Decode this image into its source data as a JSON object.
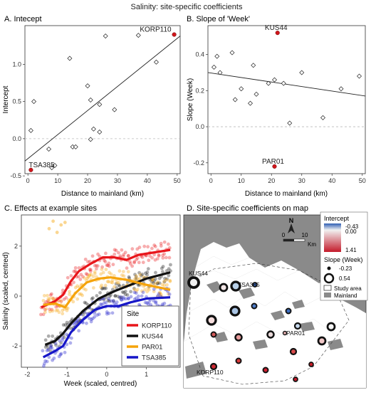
{
  "figure_title": "Salinity: site-specific coefficients",
  "chart_data": [
    {
      "panel": "A",
      "type": "scatter",
      "title": "A. Intecept",
      "xlabel": "Distance to mainland (km)",
      "ylabel": "Intercept",
      "xlim": [
        -1,
        51
      ],
      "ylim": [
        -0.47,
        1.52
      ],
      "xticks": [
        0,
        10,
        20,
        30,
        40,
        50
      ],
      "yticks": [
        -0.5,
        0.0,
        0.5,
        1.0
      ],
      "ytick_labels": [
        "-0.5",
        "0.0",
        "0.5",
        "1.0"
      ],
      "grid": false,
      "points": [
        {
          "x": 1,
          "y": 0.11
        },
        {
          "x": 2,
          "y": 0.5
        },
        {
          "x": 7,
          "y": -0.14
        },
        {
          "x": 8,
          "y": -0.39
        },
        {
          "x": 9,
          "y": -0.36
        },
        {
          "x": 14,
          "y": 1.08
        },
        {
          "x": 15,
          "y": -0.11
        },
        {
          "x": 16,
          "y": -0.11
        },
        {
          "x": 20,
          "y": 0.71
        },
        {
          "x": 21,
          "y": 0.52
        },
        {
          "x": 21,
          "y": -0.01
        },
        {
          "x": 22,
          "y": 0.13
        },
        {
          "x": 24,
          "y": 0.09
        },
        {
          "x": 24,
          "y": 0.46
        },
        {
          "x": 26,
          "y": 1.38
        },
        {
          "x": 29,
          "y": 0.39
        },
        {
          "x": 37,
          "y": 1.39
        },
        {
          "x": 43,
          "y": 1.03
        }
      ],
      "highlighted": [
        {
          "label": "TSA385",
          "x": 1,
          "y": -0.42
        },
        {
          "label": "KORP110",
          "x": 49,
          "y": 1.4
        }
      ],
      "trend": {
        "x": [
          -1,
          51
        ],
        "y": [
          -0.3,
          1.38
        ]
      },
      "zero_line": 0
    },
    {
      "panel": "B",
      "type": "scatter",
      "title": "B. Slope of 'Week'",
      "xlabel": "Distance to mainland (km)",
      "ylabel": "Slope (Week)",
      "xlim": [
        -1,
        51
      ],
      "ylim": [
        -0.26,
        0.56
      ],
      "xticks": [
        0,
        10,
        20,
        30,
        40,
        50
      ],
      "yticks": [
        -0.2,
        0.0,
        0.2,
        0.4
      ],
      "ytick_labels": [
        "-0.2",
        "0.0",
        "0.2",
        "0.4"
      ],
      "grid": false,
      "points": [
        {
          "x": 1,
          "y": 0.33
        },
        {
          "x": 2,
          "y": 0.39
        },
        {
          "x": 3,
          "y": 0.3
        },
        {
          "x": 7,
          "y": 0.41
        },
        {
          "x": 8,
          "y": 0.15
        },
        {
          "x": 10,
          "y": 0.21
        },
        {
          "x": 13,
          "y": 0.13
        },
        {
          "x": 14,
          "y": 0.34
        },
        {
          "x": 15,
          "y": 0.18
        },
        {
          "x": 19,
          "y": 0.24
        },
        {
          "x": 21,
          "y": 0.26
        },
        {
          "x": 24,
          "y": 0.24
        },
        {
          "x": 26,
          "y": 0.02
        },
        {
          "x": 30,
          "y": 0.3
        },
        {
          "x": 37,
          "y": 0.05
        },
        {
          "x": 43,
          "y": 0.21
        },
        {
          "x": 49,
          "y": 0.28
        }
      ],
      "highlighted": [
        {
          "label": "KUS44",
          "x": 22,
          "y": 0.52
        },
        {
          "label": "PAR01",
          "x": 21,
          "y": -0.22
        }
      ],
      "trend": {
        "x": [
          -1,
          51
        ],
        "y": [
          0.3,
          0.17
        ]
      },
      "zero_line": 0
    },
    {
      "panel": "C",
      "type": "scatter",
      "title": "C. Effects at example sites",
      "xlabel": "Week (scaled, centred)",
      "ylabel": "Salinity (scaled, centred)",
      "xlim": [
        -2.15,
        1.85
      ],
      "ylim": [
        -2.85,
        3.25
      ],
      "xticks": [
        -2,
        -1,
        0,
        1
      ],
      "yticks": [
        -2,
        0,
        2
      ],
      "grid": false,
      "legend": {
        "title": "Site",
        "position": "bottom-right"
      },
      "series": [
        {
          "name": "KORP110",
          "color": "#e8161b",
          "x_start": -1.65,
          "smooth": [
            [
              -1.65,
              -0.45
            ],
            [
              -1.3,
              -0.2
            ],
            [
              -1.1,
              0.05
            ],
            [
              -0.9,
              0.6
            ],
            [
              -0.7,
              1.0
            ],
            [
              -0.4,
              1.3
            ],
            [
              -0.1,
              1.55
            ],
            [
              0.2,
              1.55
            ],
            [
              0.5,
              1.45
            ],
            [
              0.8,
              1.65
            ],
            [
              1.6,
              1.85
            ]
          ]
        },
        {
          "name": "KUS44",
          "color": "#111111",
          "x_start": -1.55,
          "smooth": [
            [
              -1.55,
              -1.95
            ],
            [
              -1.3,
              -1.8
            ],
            [
              -1.1,
              -1.5
            ],
            [
              -0.9,
              -1.1
            ],
            [
              -0.6,
              -0.6
            ],
            [
              -0.2,
              -0.1
            ],
            [
              0.2,
              0.2
            ],
            [
              0.6,
              0.45
            ],
            [
              1.0,
              0.7
            ],
            [
              1.6,
              0.95
            ]
          ]
        },
        {
          "name": "PAR01",
          "color": "#f5a30a",
          "x_start": -1.6,
          "smooth": [
            [
              -1.6,
              -0.35
            ],
            [
              -1.3,
              -0.3
            ],
            [
              -1.05,
              -0.45
            ],
            [
              -0.8,
              0.1
            ],
            [
              -0.5,
              0.55
            ],
            [
              -0.2,
              0.7
            ],
            [
              0.1,
              0.75
            ],
            [
              0.5,
              0.65
            ],
            [
              1.0,
              0.45
            ],
            [
              1.6,
              0.25
            ]
          ]
        },
        {
          "name": "TSA385",
          "color": "#1616c8",
          "x_start": -1.6,
          "smooth": [
            [
              -1.6,
              -2.45
            ],
            [
              -1.3,
              -2.2
            ],
            [
              -1.1,
              -2.0
            ],
            [
              -0.9,
              -1.45
            ],
            [
              -0.6,
              -0.95
            ],
            [
              -0.3,
              -0.55
            ],
            [
              0.0,
              -0.4
            ],
            [
              0.3,
              -0.4
            ],
            [
              0.6,
              -0.25
            ],
            [
              1.0,
              -0.1
            ],
            [
              1.6,
              -0.05
            ]
          ]
        }
      ],
      "outliers": {
        "series": "PAR01",
        "x": [
          -1.45,
          -1.35,
          -1.25,
          -1.15,
          -1.05
        ],
        "y": [
          2.7,
          3.0,
          2.55,
          2.85,
          2.95
        ]
      }
    }
  ],
  "map": {
    "title": "D. Site-specific coefficients on map",
    "north": "N",
    "scale_labels": [
      "0",
      "10",
      "Km"
    ],
    "legend": {
      "intercept_title": "Intercept",
      "intercept_ticks": [
        "-0.43",
        "0.00",
        "1.41"
      ],
      "slope_title": "Slope (Week)",
      "slope_ticks": [
        "-0.23",
        "0.54"
      ],
      "study_area": "Study area",
      "mainland": "Mainland"
    },
    "labels": [
      "KUS44",
      "TSA385",
      "PAR01",
      "KORP110"
    ],
    "colors": {
      "mainland": "#8a8a8a",
      "sea": "#ffffff",
      "low": "#2f5fb4",
      "mid": "#f1f1f1",
      "high": "#c41a2a"
    }
  }
}
